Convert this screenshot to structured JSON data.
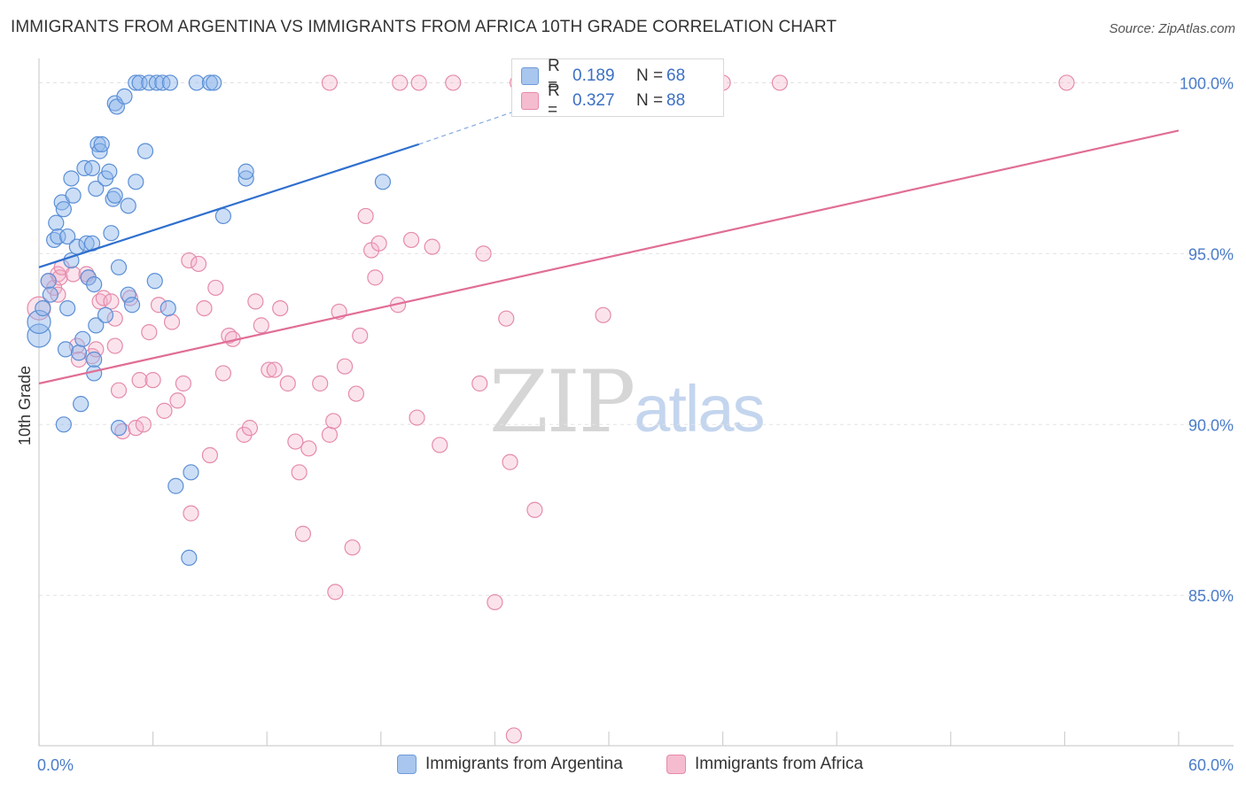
{
  "title": "IMMIGRANTS FROM ARGENTINA VS IMMIGRANTS FROM AFRICA 10TH GRADE CORRELATION CHART",
  "source": "Source: ZipAtlas.com",
  "watermark": {
    "zip": "ZIP",
    "atlas": "atlas"
  },
  "legend": {
    "rows": [
      {
        "r_label": "R =",
        "r_value": "0.189",
        "n_label": "N =",
        "n_value": "68",
        "color": "#a8c6ee",
        "border": "#6f9bd8"
      },
      {
        "r_label": "R =",
        "r_value": "0.327",
        "n_label": "N =",
        "n_value": "88",
        "color": "#f5bcd0",
        "border": "#e68aab"
      }
    ]
  },
  "bottom_legend": {
    "argentina": "Immigrants from Argentina",
    "africa": "Immigrants from Africa"
  },
  "colors": {
    "argentina_fill": "rgba(141,182,236,0.45)",
    "argentina_stroke": "#5b8fd6",
    "argentina_line": "#2e6fcf",
    "africa_fill": "rgba(244,176,200,0.35)",
    "africa_stroke": "#e58bab",
    "africa_line": "#e06e96",
    "grid": "#e3e3e3",
    "tick_label": "#4a7cc9"
  },
  "chart_data": {
    "type": "scatter",
    "title": "IMMIGRANTS FROM ARGENTINA VS IMMIGRANTS FROM AFRICA 10TH GRADE CORRELATION CHART",
    "xlabel": "",
    "ylabel": "10th Grade",
    "xlim": [
      0,
      60
    ],
    "ylim": [
      80.6,
      100.4
    ],
    "x_tick_labels": [
      "0.0%",
      "60.0%"
    ],
    "y_ticks": [
      85,
      90,
      95,
      100
    ],
    "y_tick_labels": [
      "85.0%",
      "90.0%",
      "95.0%",
      "100.0%"
    ],
    "grid": true,
    "legend_position": "top-center",
    "series": [
      {
        "name": "Immigrants from Argentina",
        "R": 0.189,
        "N": 68,
        "trend": {
          "x0": 0,
          "y0": 94.6,
          "x1": 20,
          "y1": 98.2,
          "dashed_to_x": 25.5,
          "dashed_to_y": 99.25
        },
        "points": [
          [
            0,
            92.6
          ],
          [
            0,
            93.0
          ],
          [
            0.2,
            93.4
          ],
          [
            0.5,
            94.2
          ],
          [
            0.6,
            93.8
          ],
          [
            0.8,
            95.4
          ],
          [
            0.9,
            95.9
          ],
          [
            1.0,
            95.5
          ],
          [
            1.2,
            96.5
          ],
          [
            1.3,
            96.3
          ],
          [
            1.4,
            92.2
          ],
          [
            1.3,
            90.0
          ],
          [
            1.5,
            95.5
          ],
          [
            1.5,
            93.4
          ],
          [
            1.7,
            97.2
          ],
          [
            1.7,
            94.8
          ],
          [
            1.8,
            96.7
          ],
          [
            2.0,
            95.2
          ],
          [
            2.1,
            92.1
          ],
          [
            2.2,
            90.6
          ],
          [
            2.3,
            92.5
          ],
          [
            2.4,
            97.5
          ],
          [
            2.5,
            95.3
          ],
          [
            2.6,
            94.3
          ],
          [
            2.8,
            95.3
          ],
          [
            2.8,
            97.5
          ],
          [
            2.9,
            91.9
          ],
          [
            2.9,
            91.5
          ],
          [
            2.9,
            94.1
          ],
          [
            3.0,
            96.9
          ],
          [
            3.0,
            92.9
          ],
          [
            3.1,
            98.2
          ],
          [
            3.2,
            98.0
          ],
          [
            3.3,
            98.2
          ],
          [
            3.5,
            97.2
          ],
          [
            3.5,
            93.2
          ],
          [
            3.7,
            97.4
          ],
          [
            3.8,
            95.6
          ],
          [
            3.9,
            96.6
          ],
          [
            4.0,
            96.7
          ],
          [
            4.0,
            99.4
          ],
          [
            4.1,
            99.3
          ],
          [
            4.2,
            89.9
          ],
          [
            4.2,
            94.6
          ],
          [
            4.5,
            99.6
          ],
          [
            4.7,
            93.8
          ],
          [
            4.7,
            96.4
          ],
          [
            4.9,
            93.5
          ],
          [
            5.1,
            97.1
          ],
          [
            5.1,
            100.0
          ],
          [
            5.3,
            100.0
          ],
          [
            5.6,
            98.0
          ],
          [
            5.8,
            100.0
          ],
          [
            6.1,
            94.2
          ],
          [
            6.2,
            100.0
          ],
          [
            6.5,
            100.0
          ],
          [
            6.8,
            93.4
          ],
          [
            6.9,
            100.0
          ],
          [
            7.2,
            88.2
          ],
          [
            7.9,
            86.1
          ],
          [
            8.0,
            88.6
          ],
          [
            8.3,
            100.0
          ],
          [
            9.0,
            100.0
          ],
          [
            9.2,
            100.0
          ],
          [
            9.7,
            96.1
          ],
          [
            10.9,
            97.2
          ],
          [
            10.9,
            97.4
          ],
          [
            18.1,
            97.1
          ]
        ]
      },
      {
        "name": "Immigrants from Africa",
        "R": 0.327,
        "N": 88,
        "trend": {
          "x0": 0,
          "y0": 91.2,
          "x1": 60,
          "y1": 98.6
        },
        "points": [
          [
            0,
            93.4
          ],
          [
            0.5,
            94.2
          ],
          [
            0.8,
            94.0
          ],
          [
            1.0,
            93.8
          ],
          [
            1.0,
            94.4
          ],
          [
            1.1,
            94.3
          ],
          [
            1.2,
            94.6
          ],
          [
            1.8,
            94.4
          ],
          [
            2.0,
            92.3
          ],
          [
            2.1,
            91.9
          ],
          [
            2.5,
            94.4
          ],
          [
            2.6,
            94.3
          ],
          [
            2.8,
            92.0
          ],
          [
            3.0,
            92.2
          ],
          [
            3.2,
            93.6
          ],
          [
            3.4,
            93.7
          ],
          [
            3.8,
            93.6
          ],
          [
            4.0,
            93.1
          ],
          [
            4.0,
            92.3
          ],
          [
            4.2,
            91.0
          ],
          [
            4.4,
            89.8
          ],
          [
            4.8,
            93.7
          ],
          [
            5.1,
            89.9
          ],
          [
            5.3,
            91.3
          ],
          [
            5.5,
            90.0
          ],
          [
            5.8,
            92.7
          ],
          [
            6.0,
            91.3
          ],
          [
            6.3,
            93.5
          ],
          [
            6.6,
            90.4
          ],
          [
            7.0,
            93.0
          ],
          [
            7.3,
            90.7
          ],
          [
            7.6,
            91.2
          ],
          [
            7.9,
            94.8
          ],
          [
            8.0,
            87.4
          ],
          [
            8.4,
            94.7
          ],
          [
            8.7,
            93.4
          ],
          [
            9.0,
            89.1
          ],
          [
            9.3,
            94.0
          ],
          [
            9.7,
            91.5
          ],
          [
            10.0,
            92.6
          ],
          [
            10.2,
            92.5
          ],
          [
            10.8,
            89.7
          ],
          [
            11.1,
            89.9
          ],
          [
            11.4,
            93.6
          ],
          [
            11.7,
            92.9
          ],
          [
            12.1,
            91.6
          ],
          [
            12.4,
            91.6
          ],
          [
            12.7,
            93.4
          ],
          [
            13.1,
            91.2
          ],
          [
            13.5,
            89.5
          ],
          [
            13.7,
            88.6
          ],
          [
            13.9,
            86.8
          ],
          [
            14.2,
            89.3
          ],
          [
            14.8,
            91.2
          ],
          [
            15.3,
            100.0
          ],
          [
            15.3,
            89.7
          ],
          [
            15.5,
            90.1
          ],
          [
            15.6,
            85.1
          ],
          [
            15.8,
            93.3
          ],
          [
            16.1,
            91.7
          ],
          [
            16.5,
            86.4
          ],
          [
            16.7,
            90.9
          ],
          [
            16.9,
            92.6
          ],
          [
            17.2,
            96.1
          ],
          [
            17.5,
            95.1
          ],
          [
            17.7,
            94.3
          ],
          [
            17.9,
            95.3
          ],
          [
            18.9,
            93.5
          ],
          [
            19.0,
            100.0
          ],
          [
            19.6,
            95.4
          ],
          [
            19.9,
            90.2
          ],
          [
            20.0,
            100.0
          ],
          [
            20.7,
            95.2
          ],
          [
            21.1,
            89.4
          ],
          [
            21.8,
            100.0
          ],
          [
            23.2,
            91.2
          ],
          [
            23.4,
            95.0
          ],
          [
            24.0,
            84.8
          ],
          [
            24.6,
            93.1
          ],
          [
            24.8,
            88.9
          ],
          [
            25.0,
            80.9
          ],
          [
            25.2,
            100.0
          ],
          [
            26.1,
            87.5
          ],
          [
            29.7,
            93.2
          ],
          [
            36.0,
            100.0
          ],
          [
            39.0,
            100.0
          ],
          [
            54.1,
            100.0
          ],
          [
            25.6,
            100.0
          ]
        ]
      }
    ]
  }
}
